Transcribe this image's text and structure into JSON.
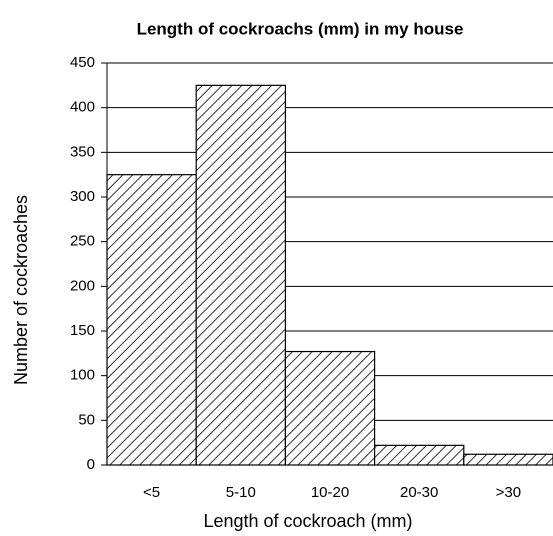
{
  "chart_data": {
    "type": "bar",
    "title": "Length of cockroachs (mm) in my house",
    "x_label": "Length of cockroach (mm)",
    "y_label": "Number of cockroaches",
    "categories": [
      "<5",
      "5-10",
      "10-20",
      "20-30",
      ">30"
    ],
    "values": [
      325,
      425,
      127,
      22,
      12
    ],
    "color": "#333333",
    "ylim": [
      0,
      450
    ],
    "yticks": [
      0,
      50,
      100,
      150,
      200,
      250,
      300,
      350,
      400,
      450
    ],
    "grid": true
  }
}
